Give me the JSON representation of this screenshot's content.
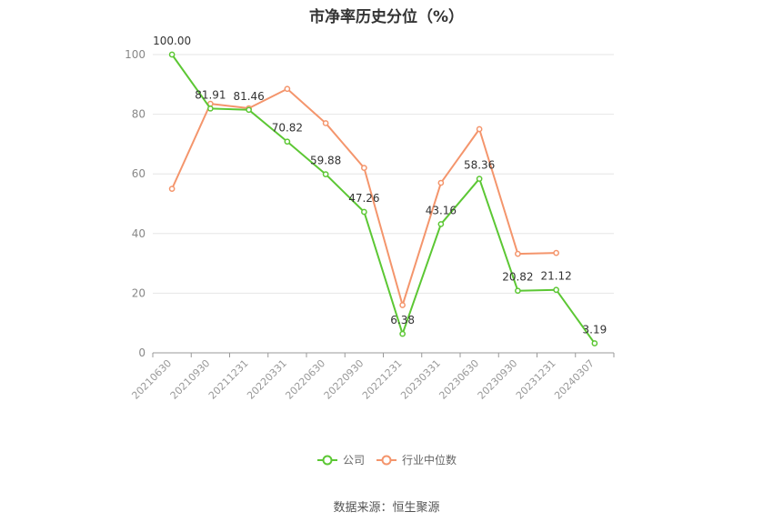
{
  "chart_data": {
    "type": "line",
    "title": "市净率历史分位（%）",
    "categories": [
      "20210630",
      "20210930",
      "20211231",
      "20220331",
      "20220630",
      "20220930",
      "20221231",
      "20230331",
      "20230630",
      "20230930",
      "20231231",
      "20240307"
    ],
    "series": [
      {
        "name": "公司",
        "color": "#5cc734",
        "values": [
          100.0,
          81.91,
          81.46,
          70.82,
          59.88,
          47.26,
          6.38,
          43.16,
          58.36,
          20.82,
          21.12,
          3.19
        ],
        "labels": [
          "100.00",
          "81.91",
          "81.46",
          "70.82",
          "59.88",
          "47.26",
          "6.38",
          "43.16",
          "58.36",
          "20.82",
          "21.12",
          "3.19"
        ]
      },
      {
        "name": "行业中位数",
        "color": "#f4956c",
        "values": [
          55,
          83.5,
          82,
          88.5,
          77,
          62,
          16,
          57,
          75,
          33.2,
          33.5,
          null
        ]
      }
    ],
    "ylim": [
      0,
      100
    ],
    "yticks": [
      0,
      20,
      40,
      60,
      80,
      100
    ],
    "grid": true,
    "legend_position": "bottom"
  },
  "source": "数据来源：恒生聚源"
}
